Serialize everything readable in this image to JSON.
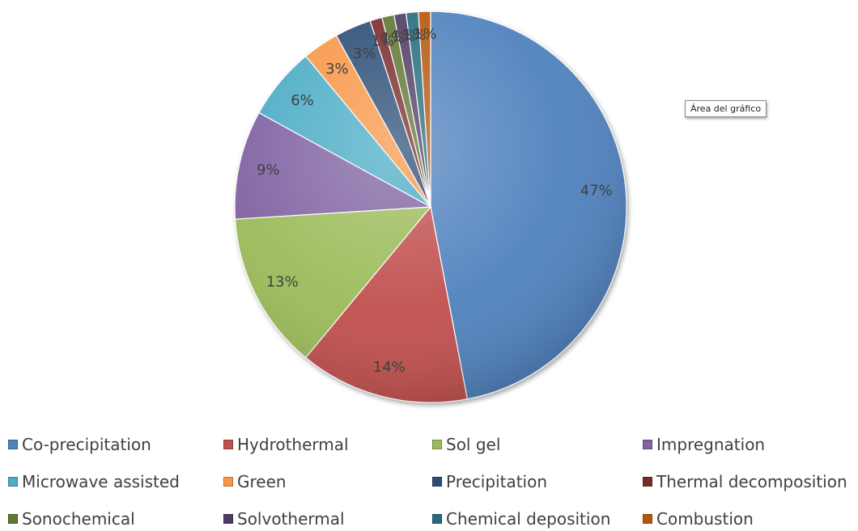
{
  "chart_data": {
    "type": "pie",
    "title": "",
    "categories": [
      "Co-precipitation",
      "Hydrothermal",
      "Sol gel",
      "Impregnation",
      "Microwave assisted",
      "Green",
      "Precipitation",
      "Thermal decomposition",
      "Sonochemical",
      "Solvothermal",
      "Chemical deposition",
      "Combustion"
    ],
    "values": [
      47,
      14,
      13,
      9,
      6,
      3,
      3,
      1,
      1,
      1,
      1,
      1
    ],
    "labels": [
      "47%",
      "14%",
      "13%",
      "9%",
      "6%",
      "3%",
      "3%",
      "1%",
      "1%",
      "1%",
      "1%",
      "1%"
    ],
    "colors": [
      "#4f81bd",
      "#c0504d",
      "#9bbb59",
      "#8064a2",
      "#4bacc6",
      "#f79646",
      "#2c4d75",
      "#772c2a",
      "#5f7530",
      "#4d3b62",
      "#276a7c",
      "#b65708"
    ],
    "legend_position": "bottom",
    "start_angle_deg": 0,
    "direction": "clockwise"
  },
  "tooltip": {
    "text": "Área del gráfico"
  }
}
